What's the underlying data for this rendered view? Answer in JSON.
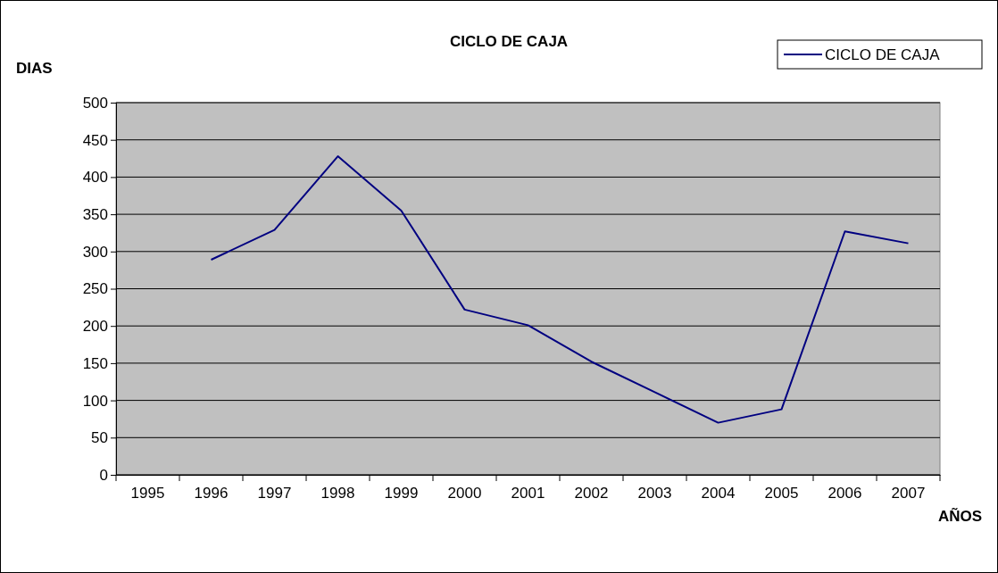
{
  "chart_data": {
    "type": "line",
    "title": "CICLO DE CAJA",
    "ylabel": "DIAS",
    "xlabel": "AÑOS",
    "categories": [
      "1995",
      "1996",
      "1997",
      "1998",
      "1999",
      "2000",
      "2001",
      "2002",
      "2003",
      "2004",
      "2005",
      "2006",
      "2007"
    ],
    "series": [
      {
        "name": "CICLO DE CAJA",
        "color": "#000080",
        "values": [
          null,
          289,
          329,
          428,
          355,
          222,
          201,
          152,
          111,
          70,
          88,
          327,
          311
        ]
      }
    ],
    "ylim": [
      0,
      500
    ],
    "yticks": [
      0,
      50,
      100,
      150,
      200,
      250,
      300,
      350,
      400,
      450,
      500
    ],
    "grid": "y",
    "legend": "top right",
    "marker": "none",
    "line_style": "solid"
  }
}
